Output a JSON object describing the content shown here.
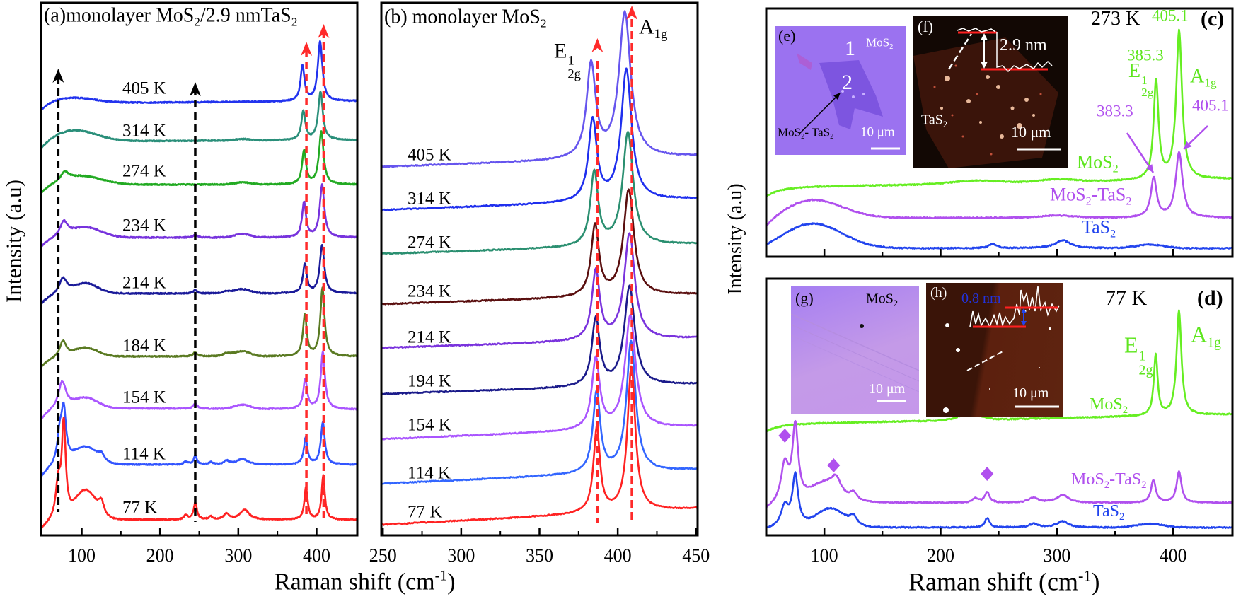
{
  "chart_data": [
    {
      "type": "line",
      "panel": "a",
      "title_parts": [
        "(a)monolayer MoS",
        "2",
        "/2.9 nmTaS",
        "2"
      ],
      "xlabel_parts": [
        "Raman shift  (cm",
        "-1",
        ")"
      ],
      "ylabel": "Intensity (a.u)",
      "xlim": [
        48,
        452
      ],
      "xticks": [
        100,
        200,
        300,
        400
      ],
      "minor_xticks": [
        150,
        250,
        350
      ],
      "xtick_labels": [
        "100",
        "200",
        "300",
        "400"
      ],
      "yticks": "none",
      "grid": false,
      "guides": [
        {
          "x": 70,
          "color": "#000000"
        },
        {
          "x": 245,
          "color": "#000000"
        },
        {
          "x": 387,
          "color": "#ff2a2a"
        },
        {
          "x": 409,
          "color": "#ff2a2a"
        }
      ],
      "series": [
        {
          "name": "405 K",
          "color": "#2233ee",
          "baseline": {
            "dip": 14,
            "slope": 3
          },
          "peaks": [
            [
              85,
              8,
              30
            ],
            [
              382,
              50,
              3
            ],
            [
              404.5,
              84,
              3.5
            ]
          ]
        },
        {
          "name": "314 K",
          "color": "#2a8f7a",
          "baseline": {
            "dip": 16,
            "slope": 2
          },
          "peaks": [
            [
              90,
              16,
              28
            ],
            [
              305,
              2,
              10
            ],
            [
              383,
              41,
              3
            ],
            [
              405,
              68,
              3.5
            ]
          ]
        },
        {
          "name": "274 K",
          "color": "#22aa22",
          "baseline": {
            "dip": 14,
            "slope": 0
          },
          "peaks": [
            [
              78,
              12,
              6
            ],
            [
              100,
              12,
              25
            ],
            [
              305,
              3,
              10
            ],
            [
              384,
              48,
              3
            ],
            [
              406,
              75,
              3.5
            ]
          ]
        },
        {
          "name": "234 K",
          "color": "#7733dd",
          "baseline": {
            "dip": 14,
            "slope": 0
          },
          "peaks": [
            [
              77,
              20,
              6
            ],
            [
              105,
              14,
              20
            ],
            [
              245,
              4,
              3
            ],
            [
              305,
              5,
              10
            ],
            [
              384,
              50,
              3
            ],
            [
              407,
              74,
              3.5
            ]
          ]
        },
        {
          "name": "214 K",
          "color": "#1a1a99",
          "baseline": {
            "dip": 16,
            "slope": 0
          },
          "peaks": [
            [
              76,
              22,
              6
            ],
            [
              105,
              14,
              15
            ],
            [
              245,
              5,
              3
            ],
            [
              285,
              3,
              5
            ],
            [
              305,
              6,
              10
            ],
            [
              385,
              41,
              3
            ],
            [
              407,
              68,
              3.5
            ]
          ]
        },
        {
          "name": "184 K",
          "color": "#5a7a22",
          "baseline": {
            "dip": 16,
            "slope": 0
          },
          "peaks": [
            [
              76,
              22,
              5
            ],
            [
              105,
              12,
              15
            ],
            [
              245,
              6,
              3
            ],
            [
              285,
              4,
              6
            ],
            [
              305,
              7,
              10
            ],
            [
              385,
              58,
              3
            ],
            [
              407.5,
              96,
              3.2
            ]
          ]
        },
        {
          "name": "154 K",
          "color": "#aa55ff",
          "baseline": {
            "dip": 18,
            "slope": -2
          },
          "peaks": [
            [
              75,
              38,
              6
            ],
            [
              105,
              14,
              15
            ],
            [
              245,
              8,
              3
            ],
            [
              305,
              6,
              10
            ],
            [
              385.5,
              42,
              3
            ],
            [
              408,
              81,
              3.2
            ]
          ]
        },
        {
          "name": "114 K",
          "color": "#3355ff",
          "baseline": {
            "dip": 20,
            "slope": 0
          },
          "peaks": [
            [
              72,
              40,
              4
            ],
            [
              77,
              70,
              3.5
            ],
            [
              105,
              24,
              15
            ],
            [
              125,
              8,
              4
            ],
            [
              233,
              4,
              3
            ],
            [
              245,
              12,
              2.5
            ],
            [
              265,
              3,
              3
            ],
            [
              285,
              5,
              4
            ],
            [
              305,
              8,
              8
            ],
            [
              386,
              37,
              2.8
            ],
            [
              408,
              60,
              3
            ]
          ]
        },
        {
          "name": "77 K",
          "color": "#ff2222",
          "baseline": {
            "dip": 16,
            "slope": 0
          },
          "peaks": [
            [
              70,
              50,
              4
            ],
            [
              77,
              130,
              3
            ],
            [
              105,
              40,
              13
            ],
            [
              125,
              18,
              4
            ],
            [
              233,
              6,
              3
            ],
            [
              245,
              24,
              2.5
            ],
            [
              265,
              4,
              3
            ],
            [
              285,
              8,
              4
            ],
            [
              308,
              14,
              7
            ],
            [
              386.5,
              46,
              2.5
            ],
            [
              408.5,
              62,
              2.5
            ]
          ]
        }
      ]
    },
    {
      "type": "line",
      "panel": "b",
      "title_parts": [
        "(b)  monolayer MoS",
        "2"
      ],
      "xlim": [
        249,
        451
      ],
      "xticks": [
        250,
        300,
        350,
        400,
        450
      ],
      "minor_xticks": [
        275,
        325,
        375,
        425
      ],
      "xtick_labels": [
        "250",
        "300",
        "350",
        "400",
        "450"
      ],
      "yticks": "none",
      "grid": false,
      "peak_labels": {
        "e2g": [
          "E",
          "1",
          "2g"
        ],
        "a1g": [
          "A",
          "1g"
        ]
      },
      "guides": [
        {
          "x": 387,
          "color": "#ff2a2a"
        },
        {
          "x": 409,
          "color": "#ff2a2a"
        }
      ],
      "series": [
        {
          "name": "405 K",
          "color": "#6655ee",
          "baseline": {
            "dip": 0,
            "slope": 15
          },
          "peaks": [
            [
              383,
              132,
              3.5
            ],
            [
              404.5,
              205,
              4.5
            ]
          ]
        },
        {
          "name": "314 K",
          "color": "#1f2fee",
          "baseline": {
            "dip": 0,
            "slope": 16
          },
          "peaks": [
            [
              384,
              115,
              3.2
            ],
            [
              405.5,
              185,
              4
            ]
          ]
        },
        {
          "name": "274 K",
          "color": "#2a8f70",
          "baseline": {
            "dip": 0,
            "slope": 14
          },
          "peaks": [
            [
              385,
              104,
              3
            ],
            [
              406.5,
              160,
              4
            ]
          ]
        },
        {
          "name": "234 K",
          "color": "#5a0f0f",
          "baseline": {
            "dip": 0,
            "slope": 14
          },
          "peaks": [
            [
              385.5,
              100,
              3
            ],
            [
              407,
              150,
              4
            ]
          ]
        },
        {
          "name": "214 K",
          "color": "#7a33dd",
          "baseline": {
            "dip": 0,
            "slope": 14
          },
          "peaks": [
            [
              386,
              98,
              3
            ],
            [
              407.5,
              150,
              4
            ]
          ]
        },
        {
          "name": "194 K",
          "color": "#1a1a8a",
          "baseline": {
            "dip": 0,
            "slope": 14
          },
          "peaks": [
            [
              386,
              96,
              3
            ],
            [
              407.5,
              140,
              4
            ]
          ]
        },
        {
          "name": "154 K",
          "color": "#aa55ff",
          "baseline": {
            "dip": 0,
            "slope": 18
          },
          "peaks": [
            [
              386,
              100,
              3
            ],
            [
              408,
              160,
              4
            ]
          ]
        },
        {
          "name": "114 K",
          "color": "#3366ff",
          "baseline": {
            "dip": 0,
            "slope": 20
          },
          "peaks": [
            [
              386.5,
              115,
              2.8
            ],
            [
              408.5,
              185,
              3.5
            ]
          ]
        },
        {
          "name": "77 K",
          "color": "#ff2222",
          "baseline": {
            "dip": 0,
            "slope": 23
          },
          "peaks": [
            [
              386.6,
              120,
              2.5
            ],
            [
              408.7,
              205,
              3
            ]
          ]
        }
      ]
    },
    {
      "type": "line",
      "panel": "c",
      "xlabel_parts": [
        "Raman shift  (cm",
        "-1",
        ")"
      ],
      "ylabel": "Intensity (a.u)",
      "xlim": [
        50,
        451
      ],
      "xticks": [
        100,
        200,
        300,
        400
      ],
      "minor_xticks": [
        150,
        250,
        350
      ],
      "xtick_labels": [],
      "yticks": "none",
      "grid": false,
      "temperature": "273 K",
      "panel_label": "(c)",
      "annotations": {
        "mos2_e2g": "385.3",
        "mos2_a1g": "405.1",
        "hetero_e2g": "383.3",
        "hetero_a1g": "405.1"
      },
      "peak_labels": {
        "e2g": [
          "E",
          "1",
          "2g"
        ],
        "a1g": [
          "A",
          "1g"
        ]
      },
      "series": [
        {
          "label_parts": [
            "MoS",
            "2"
          ],
          "color": "#66ee22",
          "baseline": {
            "dip": 13,
            "slope": 12
          },
          "peaks": [
            [
              230,
              4,
              20
            ],
            [
              300,
              4,
              15
            ],
            [
              385.3,
              140,
              2.5
            ],
            [
              405.1,
              210,
              3
            ]
          ]
        },
        {
          "label_parts": [
            "MoS",
            "2",
            "-TaS",
            "2"
          ],
          "color": "#b050ee",
          "baseline": {
            "dip": 19,
            "slope": 0
          },
          "peaks": [
            [
              90,
              26,
              25
            ],
            [
              300,
              3,
              15
            ],
            [
              383.3,
              56,
              3
            ],
            [
              405.1,
              92,
              3.5
            ]
          ]
        },
        {
          "label_parts": [
            "TaS",
            "2"
          ],
          "color": "#2244ee",
          "baseline": {
            "dip": 5,
            "slope": 0
          },
          "peaks": [
            [
              90,
              35,
              25
            ],
            [
              245,
              6,
              4
            ],
            [
              305,
              11,
              8
            ],
            [
              380,
              5,
              12
            ]
          ]
        }
      ]
    },
    {
      "type": "line",
      "panel": "d",
      "xlim": [
        50,
        451
      ],
      "xticks": [
        100,
        200,
        300,
        400
      ],
      "minor_xticks": [
        150,
        250,
        350
      ],
      "xtick_labels": [
        "100",
        "200",
        "300",
        "400"
      ],
      "yticks": "none",
      "grid": false,
      "temperature": "77 K",
      "panel_label": "(d)",
      "peak_labels": {
        "e2g": [
          "E",
          "1",
          "2g"
        ],
        "a1g": [
          "A",
          "1g"
        ]
      },
      "markers": {
        "shape": "diamond",
        "color": "#b050ee",
        "x": [
          66,
          108,
          240
        ]
      },
      "series": [
        {
          "label_parts": [
            "MoS",
            "2"
          ],
          "color": "#66ee22",
          "baseline": {
            "dip": 10,
            "slope": 14
          },
          "peaks": [
            [
              225,
              8,
              10
            ],
            [
              385,
              86,
              2
            ],
            [
              405,
              148,
              2.5
            ]
          ]
        },
        {
          "label_parts": [
            "MoS",
            "2",
            "-TaS",
            "2"
          ],
          "color": "#b050ee",
          "baseline": {
            "dip": 11,
            "slope": 0
          },
          "peaks": [
            [
              66,
              55,
              4
            ],
            [
              75,
              105,
              3
            ],
            [
              100,
              25,
              12
            ],
            [
              110,
              20,
              5
            ],
            [
              125,
              12,
              4
            ],
            [
              230,
              6,
              3
            ],
            [
              240,
              15,
              2.5
            ],
            [
              280,
              7,
              5
            ],
            [
              305,
              11,
              6
            ],
            [
              383,
              32,
              2.5
            ],
            [
              405,
              44,
              2.5
            ]
          ]
        },
        {
          "label_parts": [
            "TaS",
            "2"
          ],
          "color": "#2244ee",
          "baseline": {
            "dip": 3,
            "slope": 0
          },
          "peaks": [
            [
              66,
              30,
              4
            ],
            [
              75,
              72,
              3
            ],
            [
              105,
              26,
              12
            ],
            [
              125,
              12,
              4
            ],
            [
              240,
              13,
              2.5
            ],
            [
              280,
              5,
              5
            ],
            [
              305,
              9,
              6
            ],
            [
              380,
              5,
              12
            ]
          ]
        }
      ]
    }
  ],
  "insets": {
    "e": {
      "label": "(e)",
      "region1": "1",
      "region1_name": [
        "MoS",
        "2"
      ],
      "region2": "2",
      "region2_name": [
        "MoS",
        "2",
        "- TaS",
        "2"
      ],
      "scale": "10 μm",
      "color": "#9b72f0"
    },
    "f": {
      "label": "(f)",
      "height": "2.9 nm",
      "material": [
        "TaS",
        "2"
      ],
      "scale": "10 μm"
    },
    "g": {
      "label": "(g)",
      "material": [
        "MoS",
        "2"
      ],
      "scale": "10 μm"
    },
    "h": {
      "label": "(h)",
      "height": "0.8 nm",
      "scale": "10 μm"
    }
  }
}
